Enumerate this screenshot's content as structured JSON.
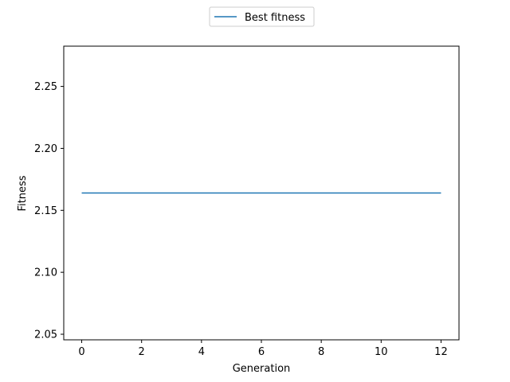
{
  "chart_data": {
    "type": "line",
    "title": "",
    "xlabel": "Generation",
    "ylabel": "Fitness",
    "xlim": [
      -0.6,
      12.6
    ],
    "ylim": [
      2.0455,
      2.2825
    ],
    "xticks": [
      0,
      2,
      4,
      6,
      8,
      10,
      12
    ],
    "xtick_labels": [
      "0",
      "2",
      "4",
      "6",
      "8",
      "10",
      "12"
    ],
    "yticks": [
      2.05,
      2.1,
      2.15,
      2.2,
      2.25
    ],
    "ytick_labels": [
      "2.05",
      "2.10",
      "2.15",
      "2.20",
      "2.25"
    ],
    "grid": false,
    "legend_position": "top-center, above plot",
    "series": [
      {
        "name": "Best fitness",
        "color": "#1f77b4",
        "x": [
          0,
          1,
          2,
          3,
          4,
          5,
          6,
          7,
          8,
          9,
          10,
          11,
          12
        ],
        "y": [
          2.164,
          2.164,
          2.164,
          2.164,
          2.164,
          2.164,
          2.164,
          2.164,
          2.164,
          2.164,
          2.164,
          2.164,
          2.164
        ]
      }
    ]
  }
}
